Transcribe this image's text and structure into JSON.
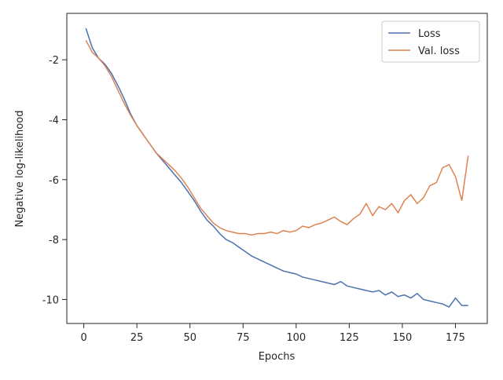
{
  "chart_data": {
    "type": "line",
    "x_label": "Epochs",
    "y_label": "Negative log-likelihood",
    "x": [
      1,
      4,
      7,
      10,
      13,
      16,
      19,
      22,
      25,
      28,
      31,
      34,
      37,
      40,
      43,
      46,
      49,
      52,
      55,
      58,
      61,
      64,
      67,
      70,
      73,
      76,
      79,
      82,
      85,
      88,
      91,
      94,
      97,
      100,
      103,
      106,
      109,
      112,
      115,
      118,
      121,
      124,
      127,
      130,
      133,
      136,
      139,
      142,
      145,
      148,
      151,
      154,
      157,
      160,
      163,
      166,
      169,
      172,
      175,
      178,
      181
    ],
    "series": [
      {
        "name": "Loss",
        "color": "#4c72b0",
        "values": [
          -0.95,
          -1.6,
          -1.95,
          -2.15,
          -2.45,
          -2.85,
          -3.3,
          -3.8,
          -4.2,
          -4.5,
          -4.8,
          -5.1,
          -5.35,
          -5.6,
          -5.85,
          -6.1,
          -6.4,
          -6.7,
          -7.05,
          -7.35,
          -7.55,
          -7.8,
          -8.0,
          -8.1,
          -8.25,
          -8.4,
          -8.55,
          -8.65,
          -8.75,
          -8.85,
          -8.95,
          -9.05,
          -9.1,
          -9.15,
          -9.25,
          -9.3,
          -9.35,
          -9.4,
          -9.45,
          -9.5,
          -9.4,
          -9.55,
          -9.6,
          -9.65,
          -9.7,
          -9.75,
          -9.7,
          -9.85,
          -9.75,
          -9.9,
          -9.85,
          -9.95,
          -9.8,
          -10.0,
          -10.05,
          -10.1,
          -10.15,
          -10.25,
          -9.95,
          -10.2,
          -10.2
        ]
      },
      {
        "name": "Val. loss",
        "color": "#dd8452",
        "values": [
          -1.35,
          -1.75,
          -1.95,
          -2.2,
          -2.55,
          -3.0,
          -3.45,
          -3.85,
          -4.2,
          -4.5,
          -4.8,
          -5.1,
          -5.3,
          -5.5,
          -5.7,
          -5.95,
          -6.25,
          -6.6,
          -6.95,
          -7.2,
          -7.45,
          -7.6,
          -7.7,
          -7.75,
          -7.8,
          -7.8,
          -7.85,
          -7.8,
          -7.8,
          -7.75,
          -7.8,
          -7.7,
          -7.75,
          -7.7,
          -7.55,
          -7.6,
          -7.5,
          -7.45,
          -7.35,
          -7.25,
          -7.4,
          -7.5,
          -7.3,
          -7.15,
          -6.8,
          -7.2,
          -6.9,
          -7.0,
          -6.8,
          -7.1,
          -6.7,
          -6.5,
          -6.8,
          -6.6,
          -6.2,
          -6.1,
          -5.6,
          -5.5,
          -5.9,
          -6.7,
          -5.2
        ]
      }
    ],
    "xlim": [
      -8,
      190
    ],
    "ylim": [
      -10.8,
      -0.45
    ],
    "xticks": [
      0,
      25,
      50,
      75,
      100,
      125,
      150,
      175
    ],
    "yticks": [
      -10,
      -8,
      -6,
      -4,
      -2
    ],
    "legend": "upper right"
  }
}
